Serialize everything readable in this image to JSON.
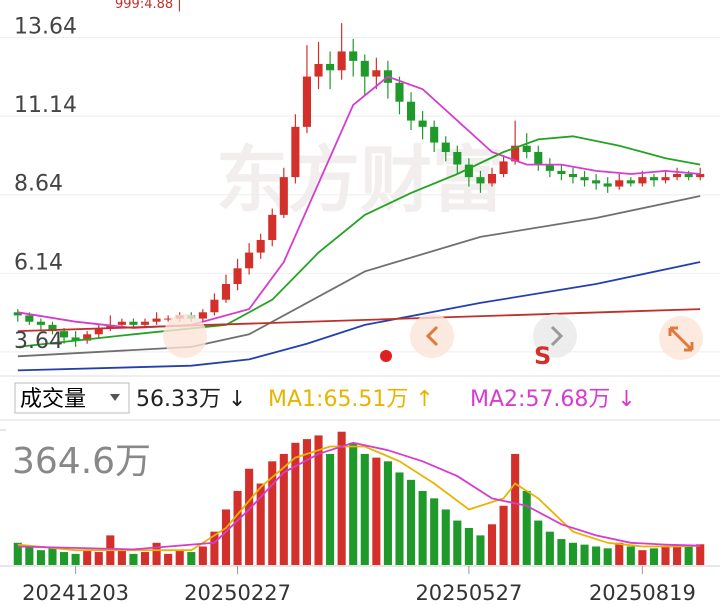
{
  "chart_data": [
    {
      "type": "candlestick",
      "top_label": "999:4.88 |",
      "watermark": "东方财富",
      "marker_label": "S",
      "open": [
        4.9,
        4.8,
        4.6,
        4.5,
        4.3,
        4.1,
        4.0,
        4.2,
        4.4,
        4.5,
        4.6,
        4.5,
        4.6,
        4.7,
        4.7,
        4.8,
        4.7,
        4.9,
        5.3,
        5.8,
        6.3,
        6.8,
        7.2,
        8.0,
        9.2,
        10.8,
        12.4,
        12.8,
        12.6,
        13.2,
        12.9,
        12.4,
        12.6,
        12.2,
        11.6,
        11.0,
        10.8,
        10.3,
        10.0,
        9.6,
        9.2,
        9.0,
        9.3,
        9.7,
        10.2,
        10.0,
        9.6,
        9.4,
        9.3,
        9.2,
        9.1,
        9.0,
        8.9,
        9.1,
        9.0,
        9.2,
        9.1,
        9.2,
        9.3,
        9.2
      ],
      "high": [
        5.0,
        4.9,
        4.7,
        4.6,
        4.4,
        4.3,
        4.3,
        4.5,
        4.8,
        4.7,
        4.7,
        4.7,
        4.9,
        4.8,
        4.9,
        4.9,
        5.0,
        5.5,
        6.1,
        6.6,
        7.1,
        7.4,
        8.2,
        9.5,
        11.2,
        13.4,
        13.5,
        13.2,
        14.1,
        13.6,
        13.1,
        13.0,
        12.9,
        12.4,
        11.9,
        11.3,
        11.0,
        10.5,
        10.2,
        9.8,
        9.4,
        9.5,
        9.9,
        11.0,
        10.6,
        10.2,
        9.8,
        9.6,
        9.5,
        9.4,
        9.3,
        9.2,
        9.3,
        9.2,
        9.4,
        9.3,
        9.4,
        9.5,
        9.4,
        9.5
      ],
      "low": [
        4.6,
        4.5,
        4.3,
        4.2,
        3.9,
        3.8,
        3.9,
        4.1,
        4.3,
        4.4,
        4.4,
        4.4,
        4.5,
        4.6,
        4.6,
        4.6,
        4.6,
        4.8,
        5.2,
        5.6,
        6.1,
        6.6,
        7.0,
        7.9,
        9.0,
        10.6,
        12.0,
        12.0,
        12.3,
        12.4,
        11.8,
        12.0,
        11.7,
        11.2,
        10.7,
        10.4,
        10.0,
        9.7,
        9.3,
        8.9,
        8.7,
        8.9,
        9.2,
        9.6,
        9.8,
        9.4,
        9.2,
        9.1,
        9.0,
        8.9,
        8.8,
        8.7,
        8.8,
        8.9,
        8.9,
        8.9,
        9.0,
        9.1,
        9.1,
        9.1
      ],
      "close": [
        4.8,
        4.6,
        4.5,
        4.3,
        4.1,
        4.0,
        4.2,
        4.4,
        4.5,
        4.6,
        4.5,
        4.6,
        4.7,
        4.7,
        4.8,
        4.7,
        4.9,
        5.3,
        5.8,
        6.3,
        6.8,
        7.2,
        8.0,
        9.2,
        10.8,
        12.4,
        12.8,
        12.6,
        13.2,
        12.9,
        12.4,
        12.6,
        12.2,
        11.6,
        11.0,
        10.8,
        10.3,
        10.0,
        9.6,
        9.2,
        9.0,
        9.3,
        9.7,
        10.2,
        10.0,
        9.6,
        9.4,
        9.3,
        9.2,
        9.1,
        9.0,
        8.9,
        9.1,
        9.0,
        9.2,
        9.1,
        9.2,
        9.3,
        9.2,
        9.3
      ],
      "up_color": "#d3302b",
      "down_color": "#1f9a2a",
      "series": [
        {
          "color": "#d63ccf",
          "x": [
            0,
            5,
            10,
            15,
            20,
            23,
            26,
            29,
            32,
            35,
            38,
            41,
            44,
            47,
            50,
            53,
            56,
            59
          ],
          "values": [
            4.9,
            4.6,
            4.4,
            4.5,
            5.0,
            6.5,
            9.0,
            11.5,
            12.4,
            12.0,
            11.0,
            10.0,
            9.6,
            9.6,
            9.4,
            9.3,
            9.4,
            9.3
          ]
        },
        {
          "color": "#23a323",
          "x": [
            0,
            10,
            18,
            22,
            26,
            30,
            34,
            38,
            42,
            45,
            48,
            52,
            56,
            59
          ],
          "values": [
            3.8,
            4.2,
            4.5,
            5.3,
            6.8,
            8.0,
            8.7,
            9.3,
            10.0,
            10.4,
            10.5,
            10.2,
            9.8,
            9.6
          ]
        },
        {
          "color": "#707070",
          "x": [
            0,
            15,
            20,
            25,
            30,
            40,
            50,
            59
          ],
          "values": [
            3.5,
            3.8,
            4.2,
            5.2,
            6.2,
            7.3,
            7.9,
            8.6
          ]
        },
        {
          "color": "#2440b0",
          "x": [
            0,
            15,
            20,
            25,
            30,
            40,
            50,
            59
          ],
          "values": [
            3.05,
            3.2,
            3.4,
            3.9,
            4.5,
            5.2,
            5.8,
            6.5
          ]
        },
        {
          "color": "#c0302a",
          "x": [
            0,
            59
          ],
          "values": [
            4.3,
            5.0
          ]
        }
      ],
      "ylim": [
        3.0,
        14.2
      ],
      "yticks": [
        13.64,
        11.14,
        8.64,
        6.14,
        3.64
      ],
      "grid": true
    },
    {
      "type": "volume",
      "indicator_name": "成交量",
      "current": "56.33万 ↓",
      "ma1_label": "MA1:65.51万 ↑",
      "ma2_label": "MA2:57.68万 ↓",
      "categories": [
        null,
        null,
        null,
        null,
        null,
        "20241203",
        null,
        null,
        null,
        null,
        null,
        null,
        null,
        null,
        null,
        null,
        null,
        null,
        null,
        "20250227",
        null,
        null,
        null,
        null,
        null,
        null,
        null,
        null,
        null,
        null,
        null,
        null,
        null,
        null,
        null,
        null,
        null,
        null,
        null,
        "20250527",
        null,
        null,
        null,
        null,
        null,
        null,
        null,
        null,
        null,
        null,
        null,
        null,
        null,
        null,
        "20250819",
        null,
        null,
        null,
        null,
        null
      ],
      "values": [
        60,
        50,
        40,
        45,
        35,
        30,
        40,
        35,
        80,
        40,
        30,
        35,
        60,
        30,
        40,
        35,
        50,
        90,
        150,
        200,
        260,
        220,
        280,
        300,
        330,
        340,
        350,
        300,
        360,
        330,
        300,
        290,
        280,
        250,
        230,
        200,
        180,
        150,
        120,
        100,
        80,
        110,
        160,
        300,
        200,
        120,
        90,
        70,
        60,
        55,
        50,
        45,
        60,
        50,
        40,
        45,
        50,
        55,
        50,
        56
      ],
      "series": [
        {
          "color": "#e8b400",
          "x": [
            0,
            5,
            10,
            15,
            18,
            21,
            24,
            27,
            30,
            33,
            36,
            39,
            42,
            43,
            45,
            48,
            51,
            54,
            57,
            59
          ],
          "values": [
            55,
            40,
            40,
            40,
            100,
            210,
            290,
            320,
            320,
            280,
            220,
            150,
            180,
            220,
            180,
            90,
            60,
            50,
            50,
            52
          ]
        },
        {
          "color": "#d63ccf",
          "x": [
            0,
            10,
            17,
            20,
            23,
            26,
            29,
            32,
            35,
            38,
            41,
            44,
            47,
            50,
            53,
            56,
            59
          ],
          "values": [
            50,
            42,
            60,
            150,
            250,
            300,
            330,
            310,
            280,
            240,
            180,
            160,
            110,
            80,
            60,
            55,
            52
          ]
        }
      ],
      "ylim": [
        0,
        364.6
      ],
      "yticks": [
        {
          "value": 364.6,
          "label": "364.6万"
        }
      ]
    }
  ]
}
